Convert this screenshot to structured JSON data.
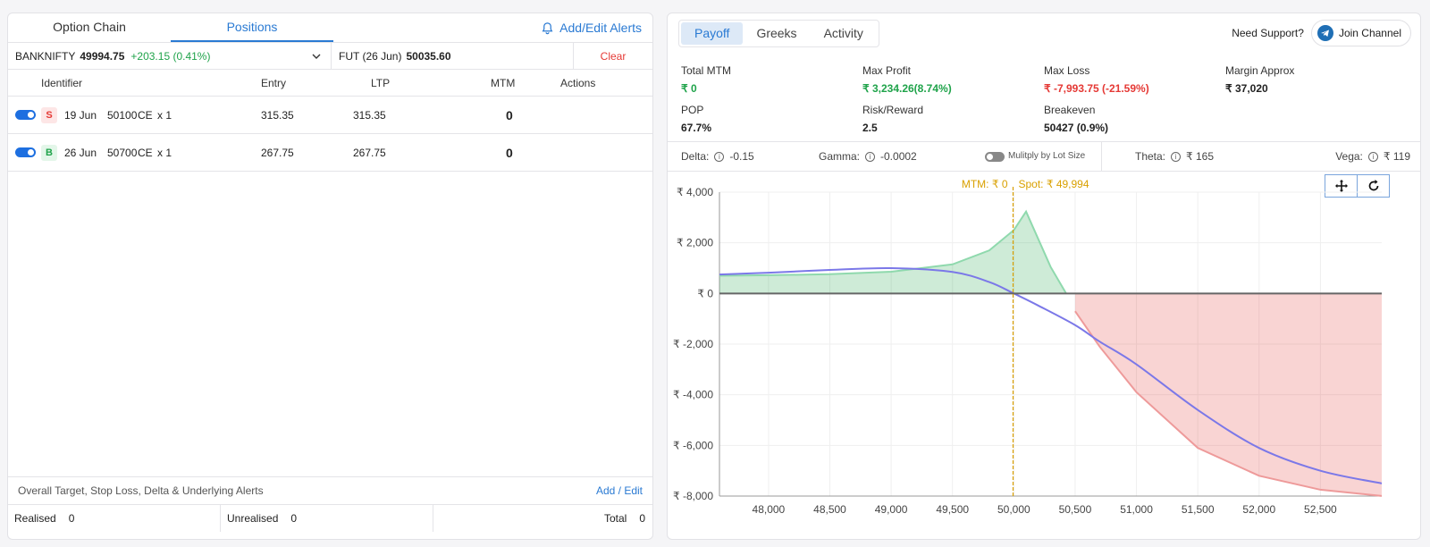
{
  "left": {
    "tabs": [
      "Option Chain",
      "Positions"
    ],
    "alerts_label": "Add/Edit Alerts",
    "symbol": {
      "name": "BANKNIFTY",
      "price": "49994.75",
      "change": "+203.15 (0.41%)"
    },
    "fut": {
      "label": "FUT (26 Jun)",
      "price": "50035.60"
    },
    "clear_label": "Clear",
    "columns": [
      "Identifier",
      "Entry",
      "LTP",
      "MTM",
      "Actions"
    ],
    "positions": [
      {
        "side": "S",
        "expiry": "19 Jun",
        "strike": "50100",
        "type": "CE",
        "qty": "x 1",
        "entry": "315.35",
        "ltp": "315.35",
        "mtm": "0"
      },
      {
        "side": "B",
        "expiry": "26 Jun",
        "strike": "50700",
        "type": "CE",
        "qty": "x 1",
        "entry": "267.75",
        "ltp": "267.75",
        "mtm": "0"
      }
    ],
    "alerts_footer": {
      "text": "Overall Target, Stop Loss, Delta & Underlying Alerts",
      "link": "Add / Edit"
    },
    "totals": {
      "realised_label": "Realised",
      "realised": "0",
      "unrealised_label": "Unrealised",
      "unrealised": "0",
      "total_label": "Total",
      "total": "0"
    }
  },
  "right": {
    "tabs": [
      "Payoff",
      "Greeks",
      "Activity"
    ],
    "support_text": "Need Support?",
    "join_label": "Join Channel",
    "stats": [
      {
        "label": "Total MTM",
        "value": "₹ 0",
        "color": "#1fa34a"
      },
      {
        "label": "Max Profit",
        "value": "₹ 3,234.26(8.74%)",
        "color": "#1fa34a"
      },
      {
        "label": "Max Loss",
        "value": "₹ -7,993.75 (-21.59%)",
        "color": "#e53935"
      },
      {
        "label": "Margin Approx",
        "value": "₹ 37,020",
        "color": "#222222"
      },
      {
        "label": "POP",
        "value": "67.7%",
        "color": "#222222"
      },
      {
        "label": "Risk/Reward",
        "value": "2.5",
        "color": "#222222"
      },
      {
        "label": "Breakeven",
        "value": "50427 (0.9%)",
        "color": "#222222"
      }
    ],
    "greeks": {
      "delta_label": "Delta:",
      "delta": "-0.15",
      "gamma_label": "Gamma:",
      "gamma": "-0.0002",
      "lot_label": "Mulitply by Lot Size",
      "theta_label": "Theta:",
      "theta": "₹ 165",
      "vega_label": "Vega:",
      "vega": "₹ 119"
    },
    "chart_annotation": {
      "mtm": "MTM: ₹ 0",
      "spot": "Spot: ₹ 49,994"
    }
  },
  "colors": {
    "accent": "#2a7ad3",
    "profit": "#1fa34a",
    "loss": "#e53935",
    "target_line": "#7b78e8",
    "expiry_profit": "#8fd9ad",
    "expiry_loss": "#ee9a9a",
    "spot_line": "#d9a000"
  },
  "icons": [
    "bell-icon",
    "chevron-down-icon",
    "telegram-icon",
    "info-icon",
    "move-icon",
    "reset-icon"
  ],
  "chart_data": {
    "type": "line",
    "x_range": [
      47600,
      53000
    ],
    "y_range": [
      -8000,
      4000
    ],
    "x_ticks": [
      48000,
      48500,
      49000,
      49500,
      50000,
      50500,
      51000,
      51500,
      52000,
      52500
    ],
    "x_tick_labels": [
      "48,000",
      "48,500",
      "49,000",
      "49,500",
      "50,000",
      "50,500",
      "51,000",
      "51,500",
      "52,000",
      "52,500"
    ],
    "y_ticks": [
      4000,
      2000,
      0,
      -2000,
      -4000,
      -6000,
      -8000
    ],
    "y_tick_labels": [
      "₹ 4,000",
      "₹ 2,000",
      "₹ 0",
      "₹ -2,000",
      "₹ -4,000",
      "₹ -6,000",
      "₹ -8,000"
    ],
    "spot": 49994,
    "grid": true,
    "series": [
      {
        "role": "expiry",
        "x": [
          47600,
          48000,
          48500,
          49000,
          49500,
          49800,
          50000,
          50100,
          50300,
          50427,
          50500,
          50700,
          51000,
          51500,
          52000,
          52500,
          53000
        ],
        "values": [
          700,
          720,
          760,
          860,
          1150,
          1700,
          2500,
          3234,
          1050,
          0,
          -700,
          -2100,
          -3900,
          -6100,
          -7200,
          -7750,
          -7994
        ]
      },
      {
        "role": "target",
        "x": [
          47600,
          48000,
          48500,
          49000,
          49500,
          49800,
          50000,
          50200,
          50500,
          50700,
          51000,
          51500,
          52000,
          52500,
          53000
        ],
        "values": [
          750,
          820,
          930,
          1000,
          850,
          450,
          0,
          -480,
          -1250,
          -1900,
          -2800,
          -4600,
          -6100,
          -7000,
          -7500
        ]
      }
    ]
  }
}
